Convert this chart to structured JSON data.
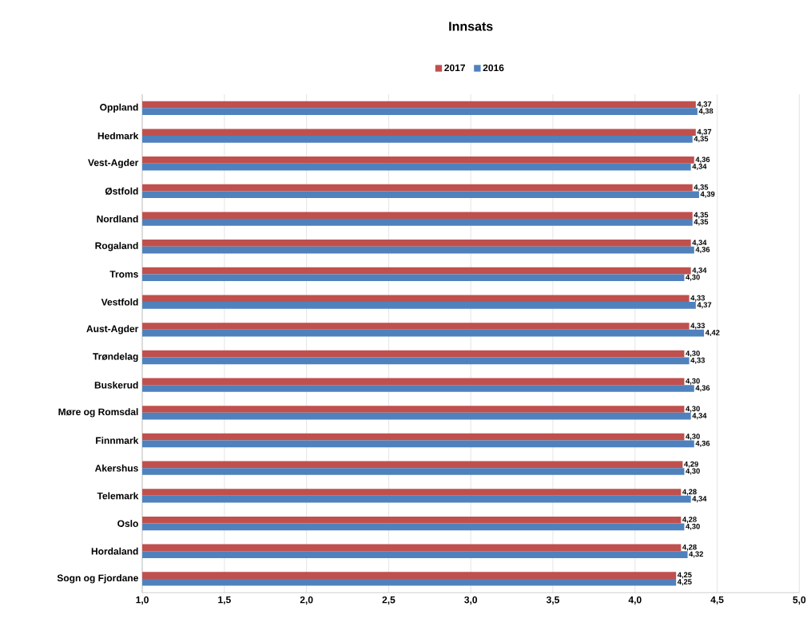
{
  "chart_data": {
    "type": "bar",
    "orientation": "horizontal",
    "title": "Innsats",
    "categories": [
      "Oppland",
      "Hedmark",
      "Vest-Agder",
      "Østfold",
      "Nordland",
      "Rogaland",
      "Troms",
      "Vestfold",
      "Aust-Agder",
      "Trøndelag",
      "Buskerud",
      "Møre og Romsdal",
      "Finnmark",
      "Akershus",
      "Telemark",
      "Oslo",
      "Hordaland",
      "Sogn og Fjordane"
    ],
    "series": [
      {
        "name": "2017",
        "color": "#c0504d",
        "values": [
          4.37,
          4.37,
          4.36,
          4.35,
          4.35,
          4.34,
          4.34,
          4.33,
          4.33,
          4.3,
          4.3,
          4.3,
          4.3,
          4.29,
          4.28,
          4.28,
          4.28,
          4.25
        ],
        "value_labels": [
          "4,37",
          "4,37",
          "4,36",
          "4,35",
          "4,35",
          "4,34",
          "4,34",
          "4,33",
          "4,33",
          "4,30",
          "4,30",
          "4,30",
          "4,30",
          "4,29",
          "4,28",
          "4,28",
          "4,28",
          "4,25"
        ]
      },
      {
        "name": "2016",
        "color": "#4f81bd",
        "values": [
          4.38,
          4.35,
          4.34,
          4.39,
          4.35,
          4.36,
          4.3,
          4.37,
          4.42,
          4.33,
          4.36,
          4.34,
          4.36,
          4.3,
          4.34,
          4.3,
          4.32,
          4.25
        ],
        "value_labels": [
          "4,38",
          "4,35",
          "4,34",
          "4,39",
          "4,35",
          "4,36",
          "4,30",
          "4,37",
          "4,42",
          "4,33",
          "4,36",
          "4,34",
          "4,36",
          "4,30",
          "4,34",
          "4,30",
          "4,32",
          "4,25"
        ]
      }
    ],
    "xlim": [
      1,
      5
    ],
    "xticks": [
      {
        "value": 1,
        "label": "1,0"
      },
      {
        "value": 1.5,
        "label": "1,5"
      },
      {
        "value": 2,
        "label": "2,0"
      },
      {
        "value": 2.5,
        "label": "2,5"
      },
      {
        "value": 3,
        "label": "3,0"
      },
      {
        "value": 3.5,
        "label": "3,5"
      },
      {
        "value": 4,
        "label": "4,0"
      },
      {
        "value": 4.5,
        "label": "4,5"
      },
      {
        "value": 5,
        "label": "5,0"
      }
    ],
    "grid": "x",
    "legend": "top"
  }
}
